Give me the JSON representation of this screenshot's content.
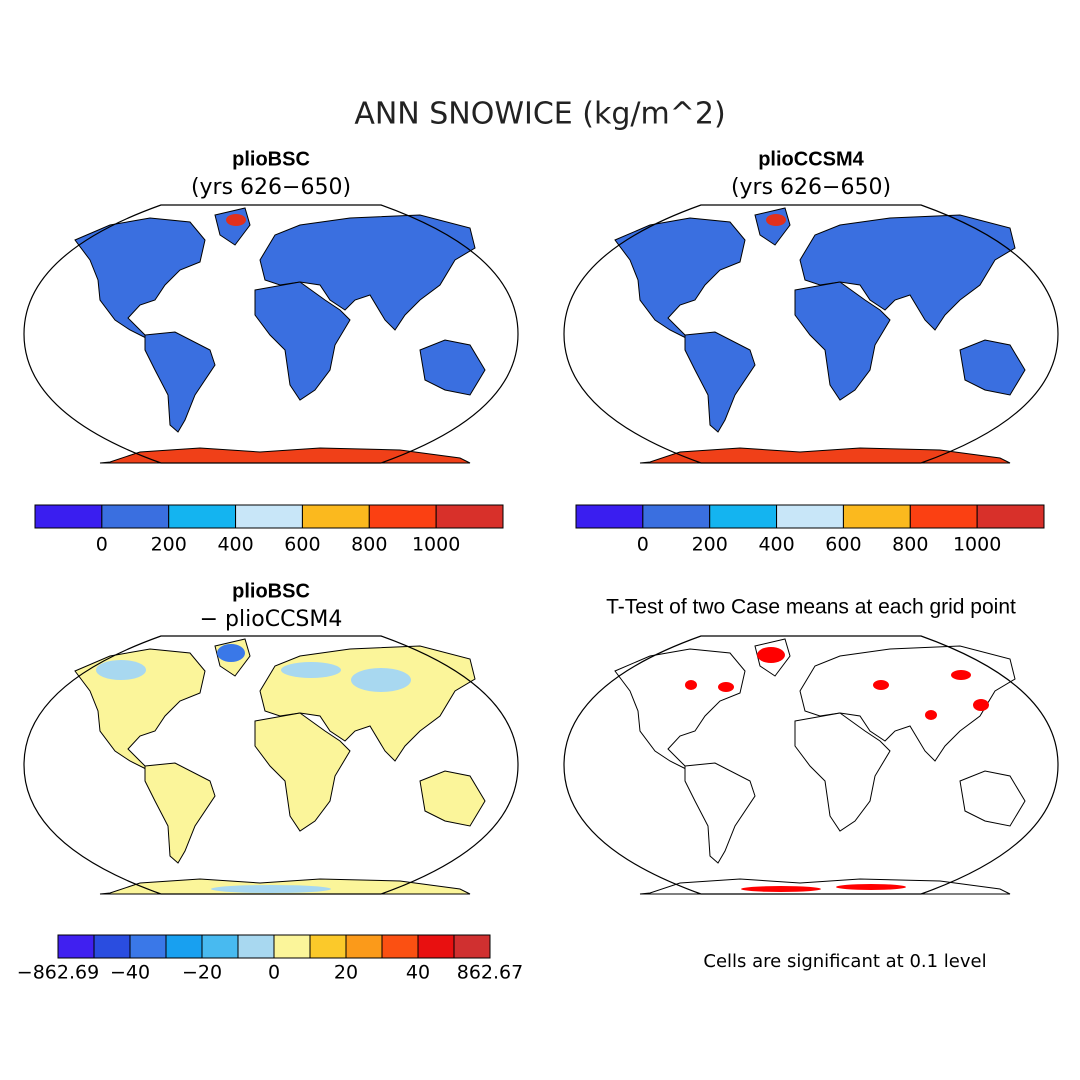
{
  "title": "ANN SNOWICE (kg/m^2)",
  "panels": [
    {
      "title": "plioBSC",
      "subtitle": "(yrs 626−650)",
      "colorbar": {
        "colors": [
          "#3a1ef0",
          "#3a6fe0",
          "#14b4f0",
          "#c8e6f8",
          "#fbb91e",
          "#fb4012",
          "#d8302a"
        ],
        "labels": [
          "0",
          "200",
          "400",
          "600",
          "800",
          "1000"
        ]
      }
    },
    {
      "title": "plioCCSM4",
      "subtitle": "(yrs 626−650)",
      "colorbar": {
        "colors": [
          "#3a1ef0",
          "#3a6fe0",
          "#14b4f0",
          "#c8e6f8",
          "#fbb91e",
          "#fb4012",
          "#d8302a"
        ],
        "labels": [
          "0",
          "200",
          "400",
          "600",
          "800",
          "1000"
        ]
      }
    },
    {
      "title": "plioBSC",
      "subtitle": "− plioCCSM4",
      "colorbar": {
        "colors": [
          "#4020f0",
          "#2a4de0",
          "#3a78e8",
          "#18a0f0",
          "#48baf0",
          "#a8d8f0",
          "#fbf59a",
          "#fbc92a",
          "#fb9a1a",
          "#fb5012",
          "#e81010",
          "#d03030"
        ],
        "labels": [
          "−862.69",
          "−40",
          "−20",
          "0",
          "20",
          "40",
          "862.67"
        ]
      }
    },
    {
      "title": "T-Test of two Case means at each grid point",
      "note": "Cells are significant at 0.1 level"
    }
  ]
}
